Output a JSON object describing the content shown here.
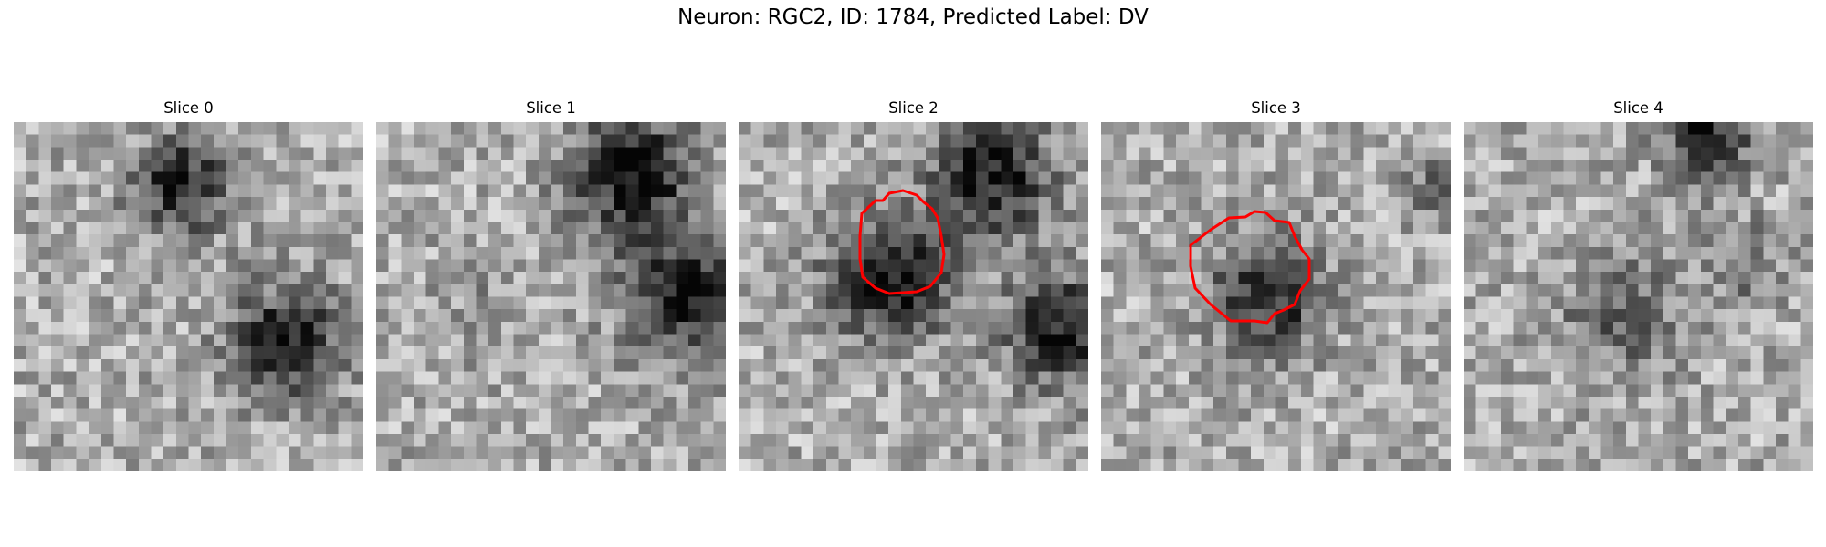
{
  "figure": {
    "title": "Neuron: RGC2, ID: 1784, Predicted Label: DV"
  },
  "colors": {
    "background": "#ffffff",
    "contour": "#ff0000",
    "colormap": "gray"
  },
  "panels": [
    {
      "title": "Slice 0",
      "has_contour": false
    },
    {
      "title": "Slice 1",
      "has_contour": false
    },
    {
      "title": "Slice 2",
      "has_contour": true
    },
    {
      "title": "Slice 3",
      "has_contour": true
    },
    {
      "title": "Slice 4",
      "has_contour": false
    }
  ]
}
